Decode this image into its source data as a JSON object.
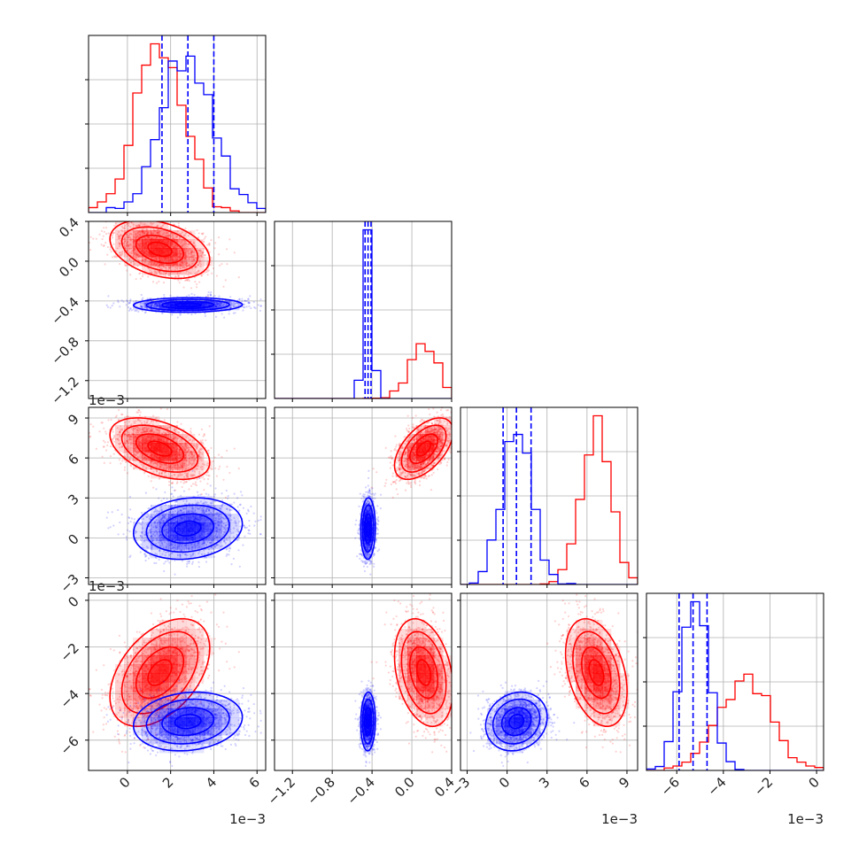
{
  "chart_data": {
    "type": "corner",
    "params": [
      {
        "id": "p1",
        "range": [
          -0.0018,
          0.0064
        ],
        "offset_label": "1e−3",
        "ticks": [
          0,
          0.002,
          0.004,
          0.006
        ],
        "tick_labels": [
          "0",
          "2",
          "4",
          "6"
        ]
      },
      {
        "id": "p2",
        "range": [
          -1.38,
          0.4
        ],
        "offset_label": "",
        "ticks": [
          -1.2,
          -0.8,
          -0.4,
          0.0,
          0.4
        ],
        "tick_labels": [
          "−1.2",
          "−0.8",
          "−0.4",
          "0.0",
          "0.4"
        ]
      },
      {
        "id": "p3",
        "range": [
          -0.0035,
          0.0098
        ],
        "offset_label": "1e−3",
        "ticks": [
          -0.003,
          0,
          0.003,
          0.006,
          0.009
        ],
        "tick_labels": [
          "−3",
          "0",
          "3",
          "6",
          "9"
        ]
      },
      {
        "id": "p4",
        "range": [
          -0.0073,
          0.0003
        ],
        "offset_label": "1e−3",
        "ticks": [
          -0.006,
          -0.004,
          -0.002,
          0
        ],
        "tick_labels": [
          "−6",
          "−4",
          "−2",
          "0"
        ]
      }
    ],
    "series": [
      {
        "name": "red",
        "color": "#ff0000",
        "mean": [
          0.0015,
          0.12,
          0.0067,
          -0.0031
        ],
        "sd": [
          0.0011,
          0.14,
          0.0011,
          0.0011
        ]
      },
      {
        "name": "blue",
        "color": "#0000ff",
        "mean": [
          0.0028,
          -0.44,
          0.0007,
          -0.0052
        ],
        "sd": [
          0.0012,
          0.035,
          0.0011,
          0.0006
        ]
      }
    ],
    "quantile_lines": [
      [
        0.0016,
        0.0028,
        0.004
      ],
      [
        -0.47,
        -0.44,
        -0.41
      ],
      [
        -0.0003,
        0.0007,
        0.0018
      ],
      [
        -0.0059,
        -0.0053,
        -0.0047
      ]
    ],
    "quantile_color": "#0000ff",
    "grid": true
  }
}
